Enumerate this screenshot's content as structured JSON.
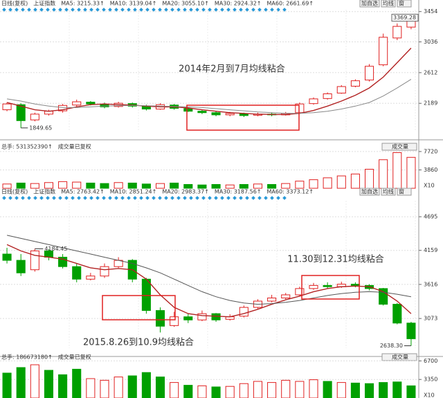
{
  "chart_data": [
    {
      "type": "candlestick",
      "header": [
        "日线(复权)",
        "上证指数"
      ],
      "legend_items": [
        {
          "text": "MA5: 3215.33↑",
          "color": "#555555"
        },
        {
          "text": "MA10: 3139.04↑",
          "color": "#c8a000"
        },
        {
          "text": "MA20: 3055.10↑",
          "color": "#c000c0"
        },
        {
          "text": "MA30: 2924.32↑",
          "color": "#00a000"
        },
        {
          "text": "MA60: 2661.69↑",
          "color": "#555555"
        }
      ],
      "toolbar": [
        "加自选",
        "均线",
        "窗"
      ],
      "open": [
        2100,
        2170,
        1960,
        2040,
        2085,
        2165,
        2205,
        2175,
        2145,
        2185,
        2150,
        2110,
        2165,
        2115,
        2080,
        2060,
        2030,
        2045,
        2025,
        2040,
        2030,
        2060,
        2185,
        2255,
        2330,
        2425,
        2510,
        2720,
        3090,
        3240
      ],
      "high": [
        2200,
        2190,
        2060,
        2100,
        2180,
        2240,
        2220,
        2200,
        2210,
        2200,
        2170,
        2190,
        2180,
        2130,
        2100,
        2080,
        2070,
        2060,
        2060,
        2060,
        2070,
        2200,
        2270,
        2340,
        2440,
        2520,
        2730,
        3150,
        3290,
        3369.28
      ],
      "low": [
        2080,
        1849.65,
        1940,
        2020,
        2060,
        2140,
        2160,
        2120,
        2130,
        2130,
        2090,
        2100,
        2100,
        2070,
        2040,
        2010,
        2010,
        2000,
        2010,
        2010,
        2020,
        2050,
        2170,
        2240,
        2320,
        2410,
        2490,
        2700,
        3060,
        3210
      ],
      "close": [
        2180,
        1950,
        2040,
        2080,
        2160,
        2210,
        2180,
        2140,
        2190,
        2150,
        2110,
        2170,
        2120,
        2080,
        2060,
        2030,
        2050,
        2020,
        2040,
        2030,
        2050,
        2180,
        2250,
        2320,
        2420,
        2500,
        2700,
        3100,
        3250,
        3330
      ],
      "ma_lines": [
        {
          "color": "#b22222",
          "values": [
            2200,
            2150,
            2100,
            2080,
            2100,
            2140,
            2170,
            2180,
            2170,
            2165,
            2150,
            2140,
            2140,
            2125,
            2100,
            2080,
            2060,
            2050,
            2040,
            2035,
            2035,
            2050,
            2090,
            2150,
            2220,
            2300,
            2400,
            2550,
            2750,
            2950
          ]
        },
        {
          "color": "#888888",
          "values": [
            2250,
            2220,
            2180,
            2150,
            2130,
            2130,
            2140,
            2150,
            2155,
            2160,
            2155,
            2150,
            2145,
            2140,
            2130,
            2115,
            2100,
            2085,
            2070,
            2060,
            2050,
            2050,
            2060,
            2080,
            2110,
            2150,
            2200,
            2290,
            2400,
            2520
          ]
        }
      ],
      "up_color": "#e02020",
      "down_color": "#00a000",
      "ylim": [
        1800,
        3480
      ],
      "yticks": [
        2189,
        2612,
        3036,
        3454
      ],
      "max_label": 3369.28,
      "min_label": 1849.65,
      "annotations": [
        "2014年2月到7月均线粘合"
      ],
      "annotation_color": "#e02020"
    },
    {
      "type": "bar",
      "header": [
        "总手: 531352390↑",
        "成交量已复权"
      ],
      "selector": "成交量",
      "values": [
        900,
        1100,
        1000,
        1200,
        1400,
        1300,
        1100,
        1000,
        1200,
        1100,
        900,
        1000,
        1100,
        800,
        700,
        800,
        700,
        800,
        900,
        800,
        1000,
        1500,
        1800,
        2200,
        2600,
        3000,
        4000,
        6000,
        7500,
        6500
      ],
      "ylim": [
        0,
        8000
      ],
      "yticks": [
        3860,
        7720
      ],
      "unit_label": "X10"
    },
    {
      "type": "candlestick",
      "header": [
        "日线(复权)",
        "上证指数"
      ],
      "legend_items": [
        {
          "text": "MA5: 2763.42↑",
          "color": "#555555"
        },
        {
          "text": "MA10: 2851.24↑",
          "color": "#c8a000"
        },
        {
          "text": "MA20: 2983.37↑",
          "color": "#c000c0"
        },
        {
          "text": "MA30: 3187.56↑",
          "color": "#00a000"
        },
        {
          "text": "MA60: 3373.12↑",
          "color": "#555555"
        }
      ],
      "toolbar": [
        "加自选",
        "均线",
        "窗"
      ],
      "open": [
        4100,
        4000,
        3850,
        4150,
        4050,
        3900,
        3700,
        3750,
        3900,
        4000,
        3700,
        3200,
        2960,
        3100,
        3050,
        3150,
        3060,
        3110,
        3250,
        3350,
        3400,
        3450,
        3550,
        3600,
        3580,
        3620,
        3600,
        3550,
        3300,
        3000
      ],
      "high": [
        4200,
        4100,
        4184.45,
        4180,
        4100,
        3950,
        3800,
        3950,
        4050,
        4020,
        3720,
        3250,
        3180,
        3150,
        3200,
        3160,
        3140,
        3280,
        3380,
        3450,
        3480,
        3580,
        3640,
        3650,
        3660,
        3650,
        3620,
        3560,
        3320,
        3020
      ],
      "low": [
        3950,
        3750,
        3820,
        4000,
        3870,
        3650,
        3680,
        3720,
        3880,
        3650,
        3150,
        2850,
        2940,
        3000,
        3030,
        3020,
        3040,
        3090,
        3230,
        3330,
        3380,
        3430,
        3530,
        3550,
        3560,
        3570,
        3520,
        3280,
        2980,
        2638.3
      ],
      "close": [
        4000,
        3800,
        4150,
        4050,
        3900,
        3700,
        3750,
        3900,
        4000,
        3700,
        3200,
        2950,
        3100,
        3050,
        3150,
        3050,
        3100,
        3250,
        3350,
        3400,
        3450,
        3550,
        3600,
        3580,
        3620,
        3600,
        3550,
        3300,
        3000,
        2750
      ],
      "ma_lines": [
        {
          "color": "#b22222",
          "values": [
            4250,
            4150,
            4080,
            4050,
            4020,
            3950,
            3880,
            3850,
            3870,
            3850,
            3700,
            3450,
            3250,
            3150,
            3120,
            3110,
            3100,
            3150,
            3220,
            3300,
            3370,
            3430,
            3500,
            3550,
            3580,
            3590,
            3580,
            3500,
            3350,
            3150
          ]
        },
        {
          "color": "#555555",
          "values": [
            4400,
            4350,
            4300,
            4250,
            4200,
            4150,
            4100,
            4050,
            4000,
            3950,
            3880,
            3800,
            3700,
            3600,
            3500,
            3420,
            3360,
            3320,
            3300,
            3310,
            3330,
            3360,
            3400,
            3440,
            3470,
            3490,
            3500,
            3490,
            3460,
            3420
          ]
        }
      ],
      "up_color": "#e02020",
      "down_color": "#00a000",
      "ylim": [
        2600,
        4950
      ],
      "yticks": [
        3073,
        3616,
        4159,
        4695
      ],
      "max_label": 4184.45,
      "min_label": {
        "value": 2638.3,
        "label": "2638.30"
      },
      "annotations": [
        "2015.8.26到10.9均线粘合",
        "11.30到12.31均线粘合"
      ],
      "annotation_color": "#e02020"
    },
    {
      "type": "bar",
      "header": [
        "总手: 186673180↑",
        "成交量已复权"
      ],
      "selector": "成交量",
      "values": [
        4500,
        5500,
        6000,
        5000,
        4200,
        5200,
        3500,
        3200,
        3800,
        4000,
        4600,
        3800,
        2800,
        2300,
        2200,
        2000,
        2100,
        2600,
        3000,
        2800,
        3200,
        3000,
        3300,
        3000,
        2800,
        2700,
        2600,
        2800,
        2900,
        2200
      ],
      "ylim": [
        0,
        7000
      ],
      "yticks": [
        3350,
        6700
      ],
      "unit_label": "X10"
    }
  ]
}
